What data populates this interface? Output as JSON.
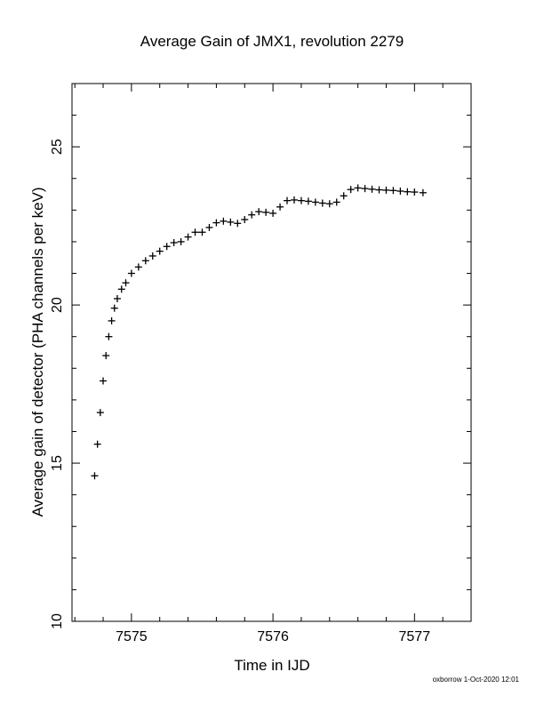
{
  "chart_data": {
    "type": "scatter",
    "title": "Average Gain of JMX1, revolution 2279",
    "xlabel": "Time in IJD",
    "ylabel": "Average gain of detector (PHA channels per keV)",
    "xlim": [
      7574.58,
      7577.4
    ],
    "ylim": [
      10,
      27
    ],
    "xticks": [
      7575,
      7576,
      7577
    ],
    "xtick_labels": [
      "7575",
      "7576",
      "7577"
    ],
    "yticks": [
      10,
      15,
      20,
      25
    ],
    "ytick_labels": [
      "10",
      "15",
      "20",
      "25"
    ],
    "grid": false,
    "marker": "+",
    "series": [
      {
        "color": "#000000",
        "x": [
          7574.74,
          7574.76,
          7574.78,
          7574.8,
          7574.82,
          7574.84,
          7574.86,
          7574.88,
          7574.9,
          7574.93,
          7574.96,
          7575.0,
          7575.05,
          7575.1,
          7575.15,
          7575.2,
          7575.25,
          7575.3,
          7575.35,
          7575.4,
          7575.45,
          7575.5,
          7575.55,
          7575.6,
          7575.65,
          7575.7,
          7575.75,
          7575.8,
          7575.85,
          7575.9,
          7575.95,
          7576.0,
          7576.05,
          7576.1,
          7576.15,
          7576.2,
          7576.25,
          7576.3,
          7576.35,
          7576.4,
          7576.45,
          7576.5,
          7576.55,
          7576.6,
          7576.65,
          7576.7,
          7576.75,
          7576.8,
          7576.85,
          7576.9,
          7576.95,
          7577.0,
          7577.06
        ],
        "y": [
          14.6,
          15.6,
          16.6,
          17.6,
          18.4,
          19.0,
          19.5,
          19.9,
          20.2,
          20.5,
          20.7,
          21.0,
          21.2,
          21.4,
          21.55,
          21.7,
          21.85,
          21.97,
          22.0,
          22.15,
          22.3,
          22.3,
          22.45,
          22.6,
          22.65,
          22.62,
          22.58,
          22.7,
          22.85,
          22.95,
          22.93,
          22.9,
          23.1,
          23.3,
          23.32,
          23.3,
          23.28,
          23.25,
          23.22,
          23.2,
          23.25,
          23.45,
          23.65,
          23.7,
          23.68,
          23.66,
          23.64,
          23.63,
          23.62,
          23.6,
          23.58,
          23.57,
          23.55
        ]
      }
    ]
  },
  "footer": {
    "stamp": "oxborrow  1-Oct-2020 12:01"
  }
}
